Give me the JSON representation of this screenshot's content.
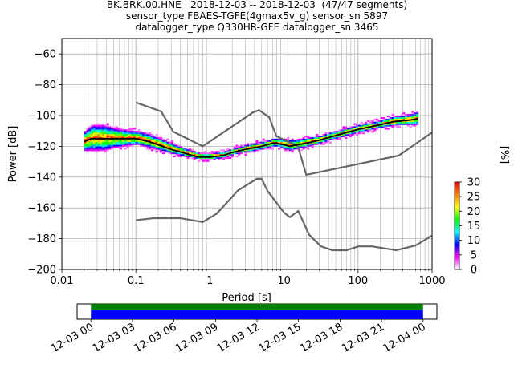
{
  "chart_data": {
    "type": "heatmap",
    "title_lines": [
      "BK.BRK.00.HNE   2018-12-03 -- 2018-12-03  (47/47 segments)",
      "sensor_type FBAES-TGFE(4gmax5v_g) sensor_sn 5897",
      "datalogger_type Q330HR-GFE datalogger_sn 3465"
    ],
    "xlabel": "Period [s]",
    "ylabel": "Power [dB]",
    "xscale": "log",
    "xlim": [
      0.01,
      1000
    ],
    "ylim": [
      -200,
      -50
    ],
    "xticks": [
      0.01,
      0.1,
      1,
      10,
      100,
      1000
    ],
    "xtick_labels": [
      "0.01",
      "0.1",
      "1",
      "10",
      "100",
      "1000"
    ],
    "yticks": [
      -200,
      -180,
      -160,
      -140,
      -120,
      -100,
      -80,
      -60
    ],
    "ytick_labels": [
      "−200",
      "−180",
      "−160",
      "−140",
      "−120",
      "−100",
      "−80",
      "−60"
    ],
    "grid": true,
    "colorbar": {
      "label": "[%]",
      "range": [
        0,
        30
      ],
      "ticks": [
        0,
        5,
        10,
        15,
        20,
        25,
        30
      ],
      "colormap": [
        "#ffffff",
        "#ff00ff",
        "#0000ff",
        "#00ffff",
        "#00ff00",
        "#ffff00",
        "#ff7f00",
        "#ff0000"
      ]
    },
    "noise_models": {
      "high": {
        "x": [
          0.1,
          0.22,
          0.32,
          0.8,
          3.8,
          4.6,
          6.3,
          7.9,
          15.4,
          20,
          354.8,
          1000
        ],
        "y": [
          -91.5,
          -97.4,
          -110.5,
          -120,
          -98,
          -96.5,
          -101,
          -113.4,
          -120,
          -138.5,
          -126,
          -111
        ]
      },
      "low": {
        "x": [
          0.1,
          0.17,
          0.4,
          0.8,
          1.24,
          2.4,
          4.3,
          5,
          6,
          10,
          12,
          15.6,
          21.9,
          31.6,
          45,
          70,
          101,
          154,
          328,
          600,
          1000
        ],
        "y": [
          -168,
          -166.7,
          -166.7,
          -169.2,
          -163.7,
          -148.6,
          -141.1,
          -141.1,
          -149,
          -163,
          -166,
          -162,
          -177.5,
          -185,
          -187.5,
          -187.5,
          -185,
          -185,
          -187.5,
          -184.4,
          -178
        ]
      }
    },
    "psd_stats": {
      "x": [
        0.02,
        0.025,
        0.035,
        0.05,
        0.07,
        0.1,
        0.15,
        0.2,
        0.3,
        0.5,
        0.7,
        1,
        1.5,
        2,
        3,
        5,
        7,
        8,
        10,
        12,
        15,
        20,
        30,
        50,
        70,
        100,
        200,
        300,
        500,
        650
      ],
      "y": [
        -117,
        -115,
        -115,
        -115,
        -115,
        -115,
        -117,
        -119,
        -122,
        -125,
        -127,
        -127,
        -126,
        -124,
        -122,
        -120,
        -118,
        -118,
        -119,
        -120,
        -119,
        -118,
        -116,
        -113,
        -111,
        -109,
        -106,
        -104,
        -103,
        -102
      ],
      "spread": [
        6,
        8,
        8,
        6,
        5,
        4,
        4,
        3.5,
        3,
        2,
        1.5,
        1.5,
        1.5,
        1.5,
        2,
        2,
        2,
        2,
        3,
        3,
        2.5,
        2.5,
        2,
        2,
        2,
        2,
        2,
        2.5,
        3,
        4
      ]
    },
    "time_axis": {
      "tick_labels": [
        "12-03 00",
        "12-03 03",
        "12-03 06",
        "12-03 09",
        "12-03 12",
        "12-03 15",
        "12-03 18",
        "12-03 21",
        "12-04 00"
      ],
      "range_hours": [
        -1,
        25
      ],
      "coverage_hours": [
        0,
        24
      ]
    }
  }
}
